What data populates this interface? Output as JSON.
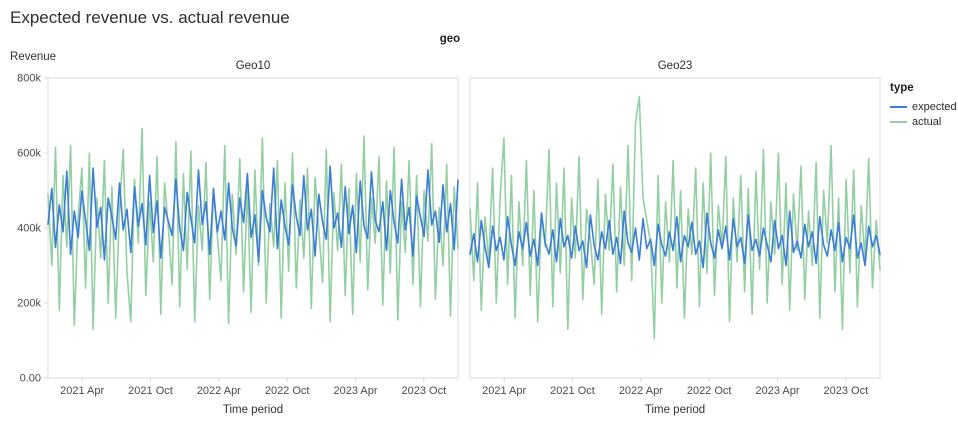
{
  "chart_data": {
    "type": "line",
    "title": "Expected revenue vs. actual revenue",
    "facet_label": "geo",
    "ylabel": "Revenue",
    "xlabel": "Time period",
    "values_unit": "thousands",
    "ylim": [
      0,
      800
    ],
    "grid": false,
    "colors": {
      "border": "#d8d8d8",
      "tick_text": "#4b4b4b"
    },
    "legend": {
      "title": "type",
      "position": "right",
      "entries": [
        {
          "label": "expected",
          "color": "#3b7dd8"
        },
        {
          "label": "actual",
          "color": "#93cfa2"
        }
      ]
    },
    "y_ticks": [
      {
        "v": 0,
        "label": "0.00"
      },
      {
        "v": 200,
        "label": "200k"
      },
      {
        "v": 400,
        "label": "400k"
      },
      {
        "v": 600,
        "label": "600k"
      },
      {
        "v": 800,
        "label": "800k"
      }
    ],
    "x_ticks": [
      {
        "f": 0.0833,
        "label": "2021 Apr"
      },
      {
        "f": 0.25,
        "label": "2021 Oct"
      },
      {
        "f": 0.4167,
        "label": "2022 Apr"
      },
      {
        "f": 0.5833,
        "label": "2022 Oct"
      },
      {
        "f": 0.75,
        "label": "2023 Apr"
      },
      {
        "f": 0.9167,
        "label": "2023 Oct"
      }
    ],
    "panels": [
      {
        "title": "Geo10",
        "series": {
          "expected": [
            410,
            505,
            348,
            462,
            390,
            552,
            330,
            445,
            375,
            498,
            420,
            340,
            560,
            402,
            455,
            315,
            480,
            430,
            370,
            520,
            395,
            450,
            335,
            510,
            405,
            465,
            355,
            540,
            388,
            472,
            320,
            455,
            418,
            380,
            530,
            400,
            340,
            495,
            425,
            360,
            555,
            410,
            470,
            330,
            505,
            390,
            445,
            368,
            520,
            400,
            352,
            480,
            415,
            545,
            375,
            435,
            310,
            500,
            428,
            390,
            560,
            345,
            475,
            405,
            355,
            515,
            430,
            380,
            540,
            395,
            450,
            325,
            490,
            415,
            370,
            565,
            400,
            440,
            348,
            510,
            385,
            460,
            335,
            525,
            405,
            372,
            550,
            420,
            390,
            470,
            340,
            500,
            415,
            360,
            530,
            395,
            455,
            325,
            485,
            430,
            378,
            555,
            408,
            445,
            362,
            515,
            390,
            465,
            342,
            528
          ],
          "actual": [
            490,
            300,
            615,
            180,
            540,
            350,
            620,
            140,
            430,
            560,
            240,
            600,
            130,
            480,
            320,
            580,
            200,
            510,
            160,
            450,
            610,
            280,
            150,
            530,
            360,
            665,
            220,
            470,
            310,
            590,
            170,
            520,
            400,
            250,
            630,
            190,
            545,
            290,
            605,
            150,
            460,
            340,
            575,
            210,
            500,
            380,
            260,
            620,
            145,
            490,
            330,
            585,
            230,
            510,
            175,
            555,
            300,
            640,
            200,
            465,
            350,
            580,
            160,
            520,
            285,
            600,
            240,
            475,
            320,
            560,
            185,
            535,
            395,
            255,
            610,
            150,
            495,
            340,
            570,
            220,
            505,
            170,
            545,
            310,
            645,
            235,
            480,
            360,
            590,
            195,
            525,
            280,
            615,
            155,
            470,
            335,
            580,
            250,
            540,
            190,
            500,
            365,
            625,
            210,
            455,
            300,
            570,
            165,
            510,
            345
          ]
        }
      },
      {
        "title": "Geo23",
        "series": {
          "expected": [
            330,
            385,
            310,
            420,
            350,
            295,
            405,
            340,
            375,
            315,
            430,
            355,
            300,
            390,
            345,
            415,
            325,
            370,
            300,
            440,
            360,
            330,
            395,
            310,
            425,
            350,
            380,
            320,
            405,
            340,
            365,
            295,
            435,
            355,
            315,
            390,
            345,
            420,
            330,
            375,
            305,
            445,
            360,
            335,
            400,
            315,
            425,
            345,
            370,
            300,
            410,
            355,
            325,
            390,
            340,
            430,
            310,
            380,
            350,
            415,
            330,
            365,
            295,
            440,
            360,
            320,
            395,
            345,
            405,
            315,
            425,
            350,
            375,
            305,
            435,
            340,
            370,
            325,
            400,
            355,
            310,
            420,
            345,
            380,
            300,
            445,
            335,
            365,
            320,
            410,
            350,
            390,
            305,
            430,
            355,
            325,
            395,
            340,
            415,
            310,
            375,
            345,
            435,
            320,
            360,
            300,
            405,
            350,
            380,
            330
          ],
          "actual": [
            450,
            260,
            520,
            180,
            430,
            310,
            560,
            200,
            480,
            640,
            250,
            540,
            160,
            470,
            300,
            580,
            220,
            500,
            150,
            440,
            350,
            610,
            190,
            520,
            280,
            560,
            130,
            480,
            320,
            590,
            210,
            450,
            370,
            250,
            530,
            170,
            490,
            340,
            570,
            230,
            510,
            300,
            620,
            260,
            680,
            750,
            480,
            420,
            360,
            105,
            540,
            200,
            470,
            310,
            580,
            240,
            500,
            160,
            450,
            330,
            560,
            190,
            520,
            280,
            600,
            220,
            460,
            350,
            590,
            150,
            480,
            310,
            540,
            230,
            505,
            170,
            550,
            290,
            610,
            200,
            470,
            330,
            600,
            250,
            520,
            180,
            490,
            340,
            565,
            210,
            445,
            300,
            575,
            160,
            500,
            360,
            620,
            230,
            480,
            130,
            530,
            280,
            555,
            190,
            460,
            320,
            585,
            240,
            420,
            290
          ]
        }
      }
    ]
  }
}
